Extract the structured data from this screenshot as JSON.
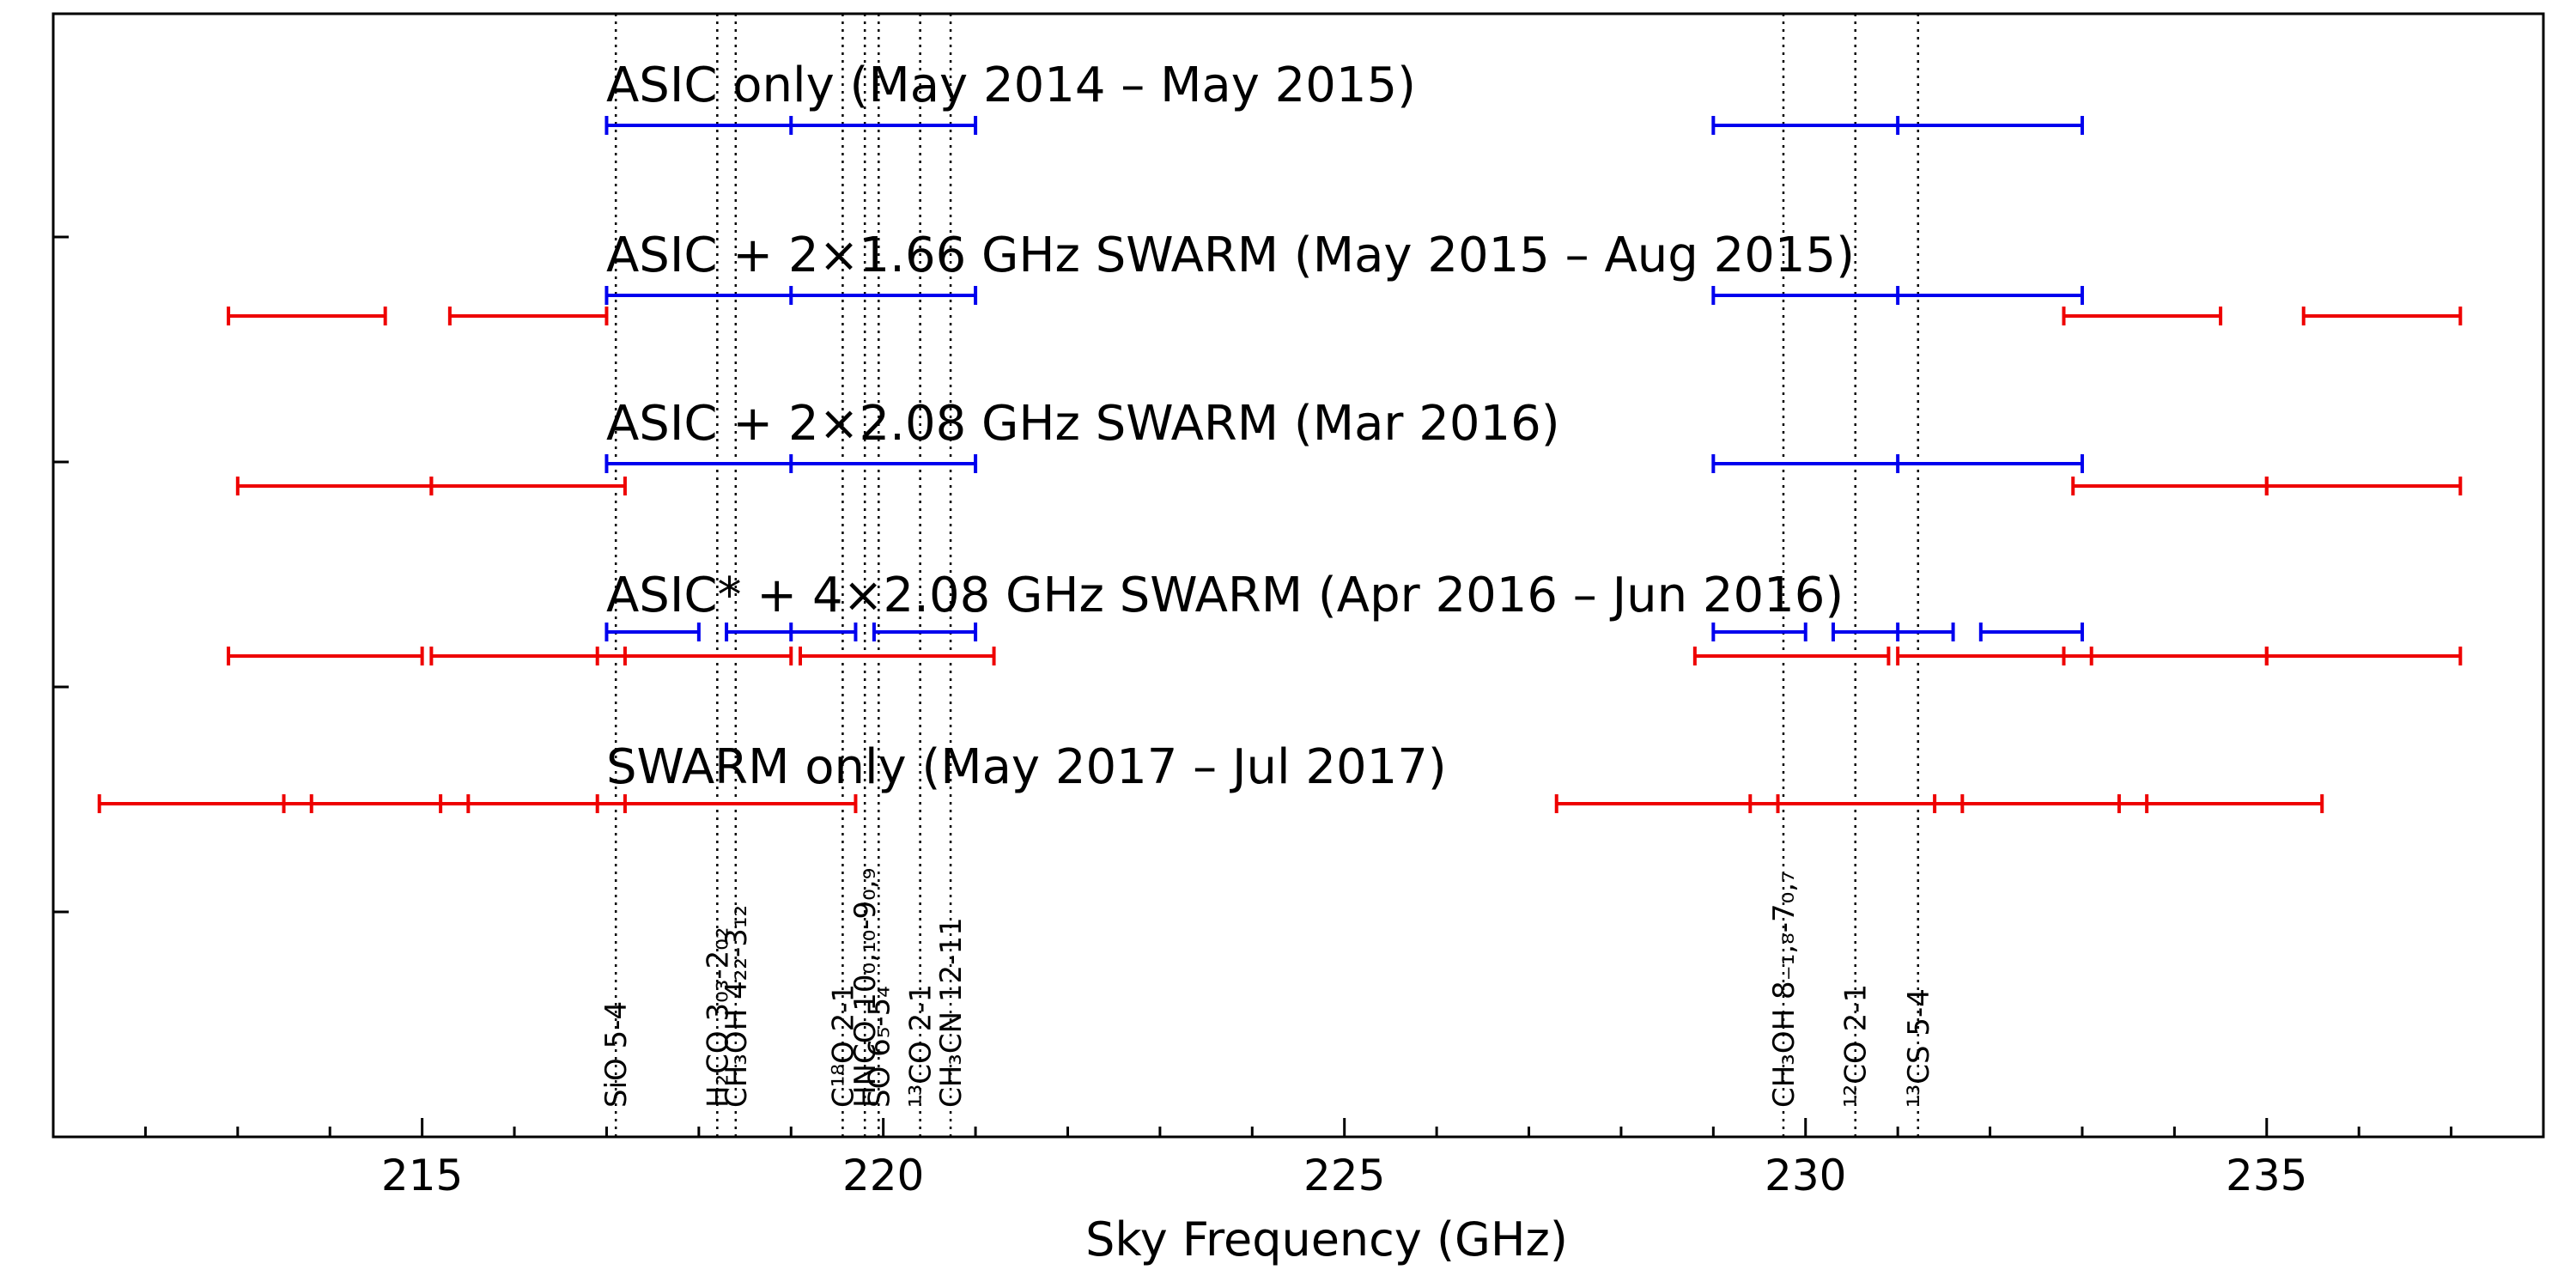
{
  "chart_data": {
    "type": "range",
    "title": "",
    "xlabel": "Sky Frequency (GHz)",
    "xlim": [
      211.0,
      238.0
    ],
    "xticks": [
      215,
      220,
      225,
      230,
      235
    ],
    "grid": false,
    "rows": [
      {
        "label": "ASIC only (May 2014 – May 2015)",
        "asic": [
          [
            217.0,
            221.0
          ],
          [
            229.0,
            233.0
          ]
        ],
        "asic_midticks": [
          219.0,
          231.0
        ],
        "swarm": [],
        "swarm_subticks": []
      },
      {
        "label": "ASIC + 2×1.66 GHz SWARM (May 2015 – Aug 2015)",
        "asic": [
          [
            217.0,
            221.0
          ],
          [
            229.0,
            233.0
          ]
        ],
        "asic_midticks": [
          219.0,
          231.0
        ],
        "swarm": [
          [
            212.9,
            214.6
          ],
          [
            215.3,
            217.0
          ],
          [
            232.8,
            234.5
          ],
          [
            235.4,
            237.1
          ]
        ],
        "swarm_subticks": []
      },
      {
        "label": "ASIC + 2×2.08 GHz SWARM (Mar 2016)",
        "asic": [
          [
            217.0,
            221.0
          ],
          [
            229.0,
            233.0
          ]
        ],
        "asic_midticks": [
          219.0,
          231.0
        ],
        "swarm": [
          [
            213.0,
            215.1
          ],
          [
            215.1,
            217.2
          ],
          [
            232.9,
            235.0
          ],
          [
            235.0,
            237.1
          ]
        ],
        "swarm_subticks": []
      },
      {
        "label": "ASIC* + 4×2.08 GHz SWARM (Apr 2016 – Jun 2016)",
        "asic": [
          [
            217.0,
            218.0
          ],
          [
            218.3,
            219.7
          ],
          [
            219.9,
            221.0
          ],
          [
            229.0,
            230.0
          ],
          [
            230.3,
            231.6
          ],
          [
            231.9,
            233.0
          ]
        ],
        "asic_midticks": [
          219.0,
          231.0
        ],
        "swarm": [
          [
            212.9,
            215.0
          ],
          [
            215.1,
            219.0
          ],
          [
            219.1,
            221.2
          ],
          [
            228.8,
            230.9
          ],
          [
            231.0,
            235.0
          ],
          [
            235.0,
            237.1
          ]
        ],
        "swarm_subticks": [
          216.9,
          217.2,
          232.8,
          233.1
        ]
      },
      {
        "label": "SWARM only (May 2017 – Jul 2017)",
        "asic": [],
        "asic_midticks": [],
        "swarm": [
          [
            211.5,
            219.7
          ],
          [
            227.3,
            235.6
          ]
        ],
        "swarm_subticks": [
          213.5,
          213.8,
          215.2,
          215.5,
          216.9,
          217.2,
          229.4,
          229.7,
          231.4,
          231.7,
          233.4,
          233.7
        ]
      }
    ],
    "lines": [
      {
        "freq": 217.1,
        "label": "SiO 5-4"
      },
      {
        "freq": 218.2,
        "label": "H₂CO 3₀₃-2₀₂"
      },
      {
        "freq": 218.4,
        "label": "CH₃OH 4₂₂-3₁₂"
      },
      {
        "freq": 219.56,
        "label": "C¹⁸O 2-1"
      },
      {
        "freq": 219.8,
        "label": "HNCO 10₀,₁₀-9₀,₉"
      },
      {
        "freq": 219.95,
        "label": "SO 6₅-5₄"
      },
      {
        "freq": 220.4,
        "label": "¹³CO 2-1"
      },
      {
        "freq": 220.73,
        "label": "CH₃CN 12-11"
      },
      {
        "freq": 229.76,
        "label": "CH₃OH 8₋₁,₈-7₀,₇"
      },
      {
        "freq": 230.54,
        "label": "¹²CO 2-1"
      },
      {
        "freq": 231.22,
        "label": "¹³CS 5-4"
      }
    ],
    "colors": {
      "asic": "#0000ee",
      "swarm": "#ee0000"
    }
  }
}
